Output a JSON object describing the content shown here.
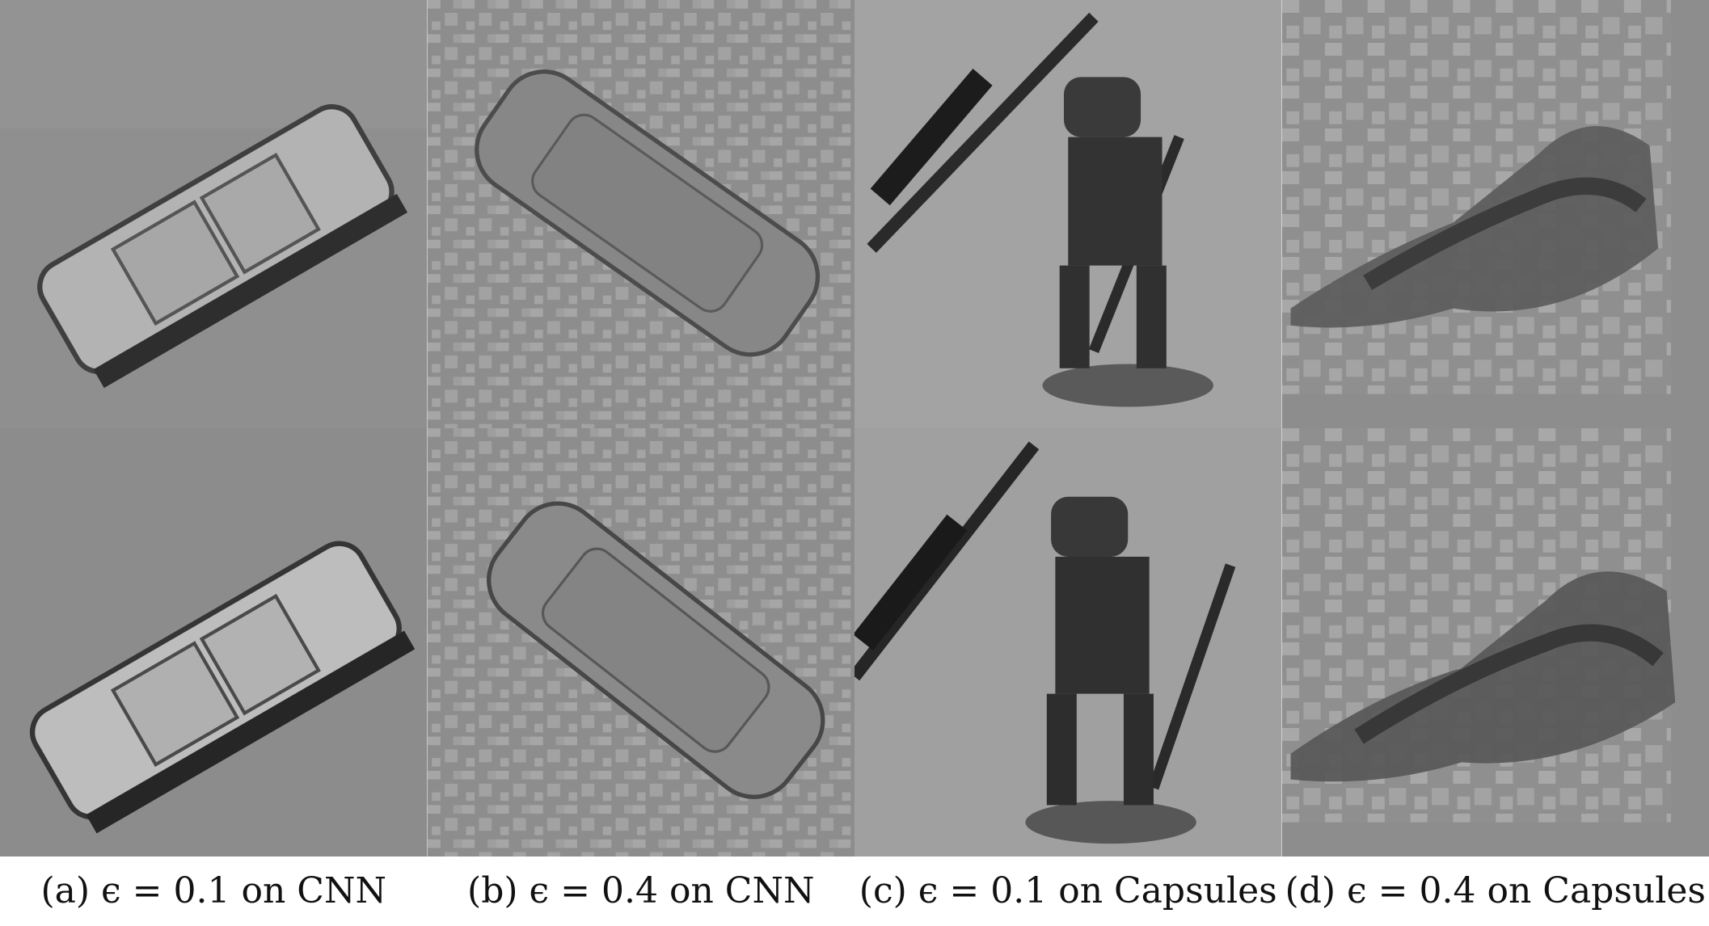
{
  "figure": {
    "subfigures": [
      {
        "id": "a",
        "caption": "(a) ϵ = 0.1 on CNN"
      },
      {
        "id": "b",
        "caption": "(b) ϵ = 0.4 on CNN"
      },
      {
        "id": "c",
        "caption": "(c) ϵ = 0.1 on Capsules"
      },
      {
        "id": "d",
        "caption": "(d) ϵ = 0.4 on Capsules"
      }
    ]
  }
}
